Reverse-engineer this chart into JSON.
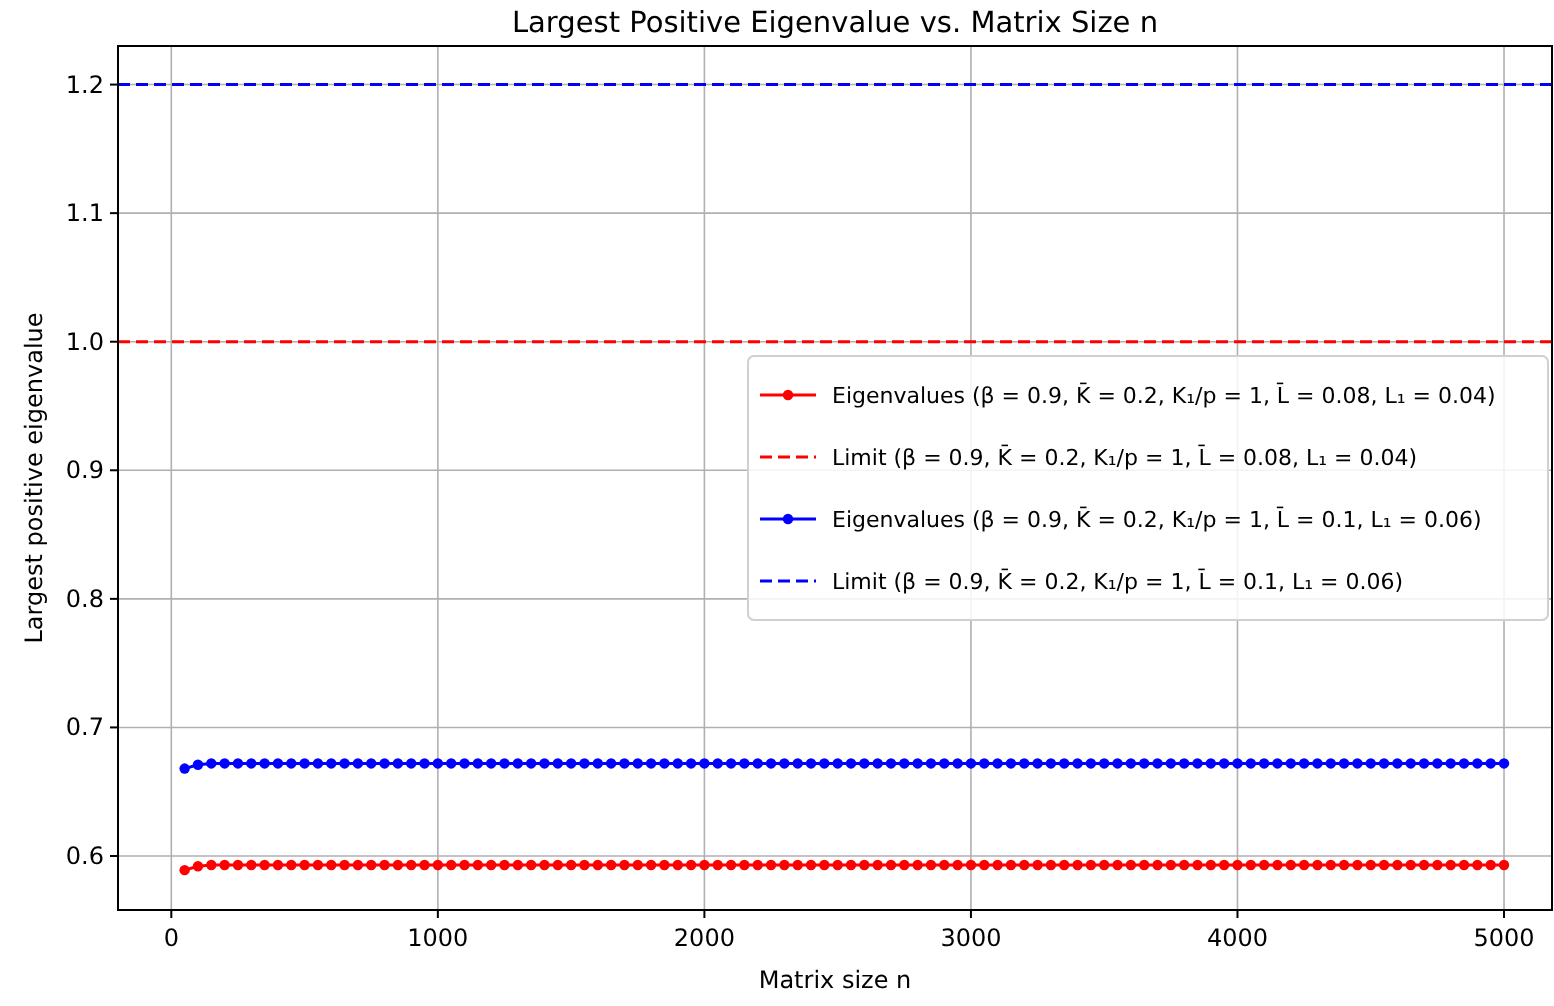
{
  "chart_data": {
    "type": "line",
    "title": "Largest Positive Eigenvalue vs. Matrix Size n",
    "xlabel": "Matrix size n",
    "ylabel": "Largest positive eigenvalue",
    "x": [
      50,
      100,
      150,
      200,
      250,
      300,
      350,
      400,
      450,
      500,
      550,
      600,
      650,
      700,
      750,
      800,
      850,
      900,
      950,
      1000,
      1050,
      1100,
      1150,
      1200,
      1250,
      1300,
      1350,
      1400,
      1450,
      1500,
      1550,
      1600,
      1650,
      1700,
      1750,
      1800,
      1850,
      1900,
      1950,
      2000,
      2050,
      2100,
      2150,
      2200,
      2250,
      2300,
      2350,
      2400,
      2450,
      2500,
      2550,
      2600,
      2650,
      2700,
      2750,
      2800,
      2850,
      2900,
      2950,
      3000,
      3050,
      3100,
      3150,
      3200,
      3250,
      3300,
      3350,
      3400,
      3450,
      3500,
      3550,
      3600,
      3650,
      3700,
      3750,
      3800,
      3850,
      3900,
      3950,
      4000,
      4050,
      4100,
      4150,
      4200,
      4250,
      4300,
      4350,
      4400,
      4450,
      4500,
      4550,
      4600,
      4650,
      4700,
      4750,
      4800,
      4850,
      4900,
      4950,
      5000
    ],
    "series": [
      {
        "name": "Eigenvalues (β = 0.9, K̄ = 0.2, K₁/p = 1, L̄ = 0.08, L₁ = 0.04)",
        "color": "#ff0000",
        "values": [
          0.589,
          0.592,
          0.593,
          0.593,
          0.593,
          0.593,
          0.593,
          0.593,
          0.593,
          0.593,
          0.593,
          0.593,
          0.593,
          0.593,
          0.593,
          0.593,
          0.593,
          0.593,
          0.593,
          0.593,
          0.593,
          0.593,
          0.593,
          0.593,
          0.593,
          0.593,
          0.593,
          0.593,
          0.593,
          0.593,
          0.593,
          0.593,
          0.593,
          0.593,
          0.593,
          0.593,
          0.593,
          0.593,
          0.593,
          0.593,
          0.593,
          0.593,
          0.593,
          0.593,
          0.593,
          0.593,
          0.593,
          0.593,
          0.593,
          0.593,
          0.593,
          0.593,
          0.593,
          0.593,
          0.593,
          0.593,
          0.593,
          0.593,
          0.593,
          0.593,
          0.593,
          0.593,
          0.593,
          0.593,
          0.593,
          0.593,
          0.593,
          0.593,
          0.593,
          0.593,
          0.593,
          0.593,
          0.593,
          0.593,
          0.593,
          0.593,
          0.593,
          0.593,
          0.593,
          0.593,
          0.593,
          0.593,
          0.593,
          0.593,
          0.593,
          0.593,
          0.593,
          0.593,
          0.593,
          0.593,
          0.593,
          0.593,
          0.593,
          0.593,
          0.593,
          0.593,
          0.593,
          0.593,
          0.593,
          0.593
        ]
      },
      {
        "name": "Eigenvalues (β = 0.9, K̄ = 0.2, K₁/p = 1, L̄ = 0.1, L₁ = 0.06)",
        "color": "#0000ff",
        "values": [
          0.668,
          0.671,
          0.672,
          0.672,
          0.672,
          0.672,
          0.672,
          0.672,
          0.672,
          0.672,
          0.672,
          0.672,
          0.672,
          0.672,
          0.672,
          0.672,
          0.672,
          0.672,
          0.672,
          0.672,
          0.672,
          0.672,
          0.672,
          0.672,
          0.672,
          0.672,
          0.672,
          0.672,
          0.672,
          0.672,
          0.672,
          0.672,
          0.672,
          0.672,
          0.672,
          0.672,
          0.672,
          0.672,
          0.672,
          0.672,
          0.672,
          0.672,
          0.672,
          0.672,
          0.672,
          0.672,
          0.672,
          0.672,
          0.672,
          0.672,
          0.672,
          0.672,
          0.672,
          0.672,
          0.672,
          0.672,
          0.672,
          0.672,
          0.672,
          0.672,
          0.672,
          0.672,
          0.672,
          0.672,
          0.672,
          0.672,
          0.672,
          0.672,
          0.672,
          0.672,
          0.672,
          0.672,
          0.672,
          0.672,
          0.672,
          0.672,
          0.672,
          0.672,
          0.672,
          0.672,
          0.672,
          0.672,
          0.672,
          0.672,
          0.672,
          0.672,
          0.672,
          0.672,
          0.672,
          0.672,
          0.672,
          0.672,
          0.672,
          0.672,
          0.672,
          0.672,
          0.672,
          0.672,
          0.672,
          0.672
        ]
      }
    ],
    "ref_lines": [
      {
        "axis": "y",
        "value": 1.0,
        "label": "Limit (β = 0.9, K̄ = 0.2, K₁/p = 1, L̄ = 0.08, L₁ = 0.04)",
        "color": "#ff0000",
        "line_style": "dashed"
      },
      {
        "axis": "y",
        "value": 1.2,
        "label": "Limit (β = 0.9, K̄ = 0.2, K₁/p = 1, L̄ = 0.1, L₁ = 0.06)",
        "color": "#0000ff",
        "line_style": "dashed"
      }
    ],
    "xlim": [
      -200,
      5180
    ],
    "ylim": [
      0.558,
      1.23
    ],
    "xticks": [
      0,
      1000,
      2000,
      3000,
      4000,
      5000
    ],
    "yticks": [
      0.6,
      0.7,
      0.8,
      0.9,
      {
        "value": 1,
        "label": "1.0"
      },
      1.1,
      1.2
    ],
    "grid": true,
    "legend": "center right",
    "marker": "circle",
    "line_style": "solid"
  }
}
